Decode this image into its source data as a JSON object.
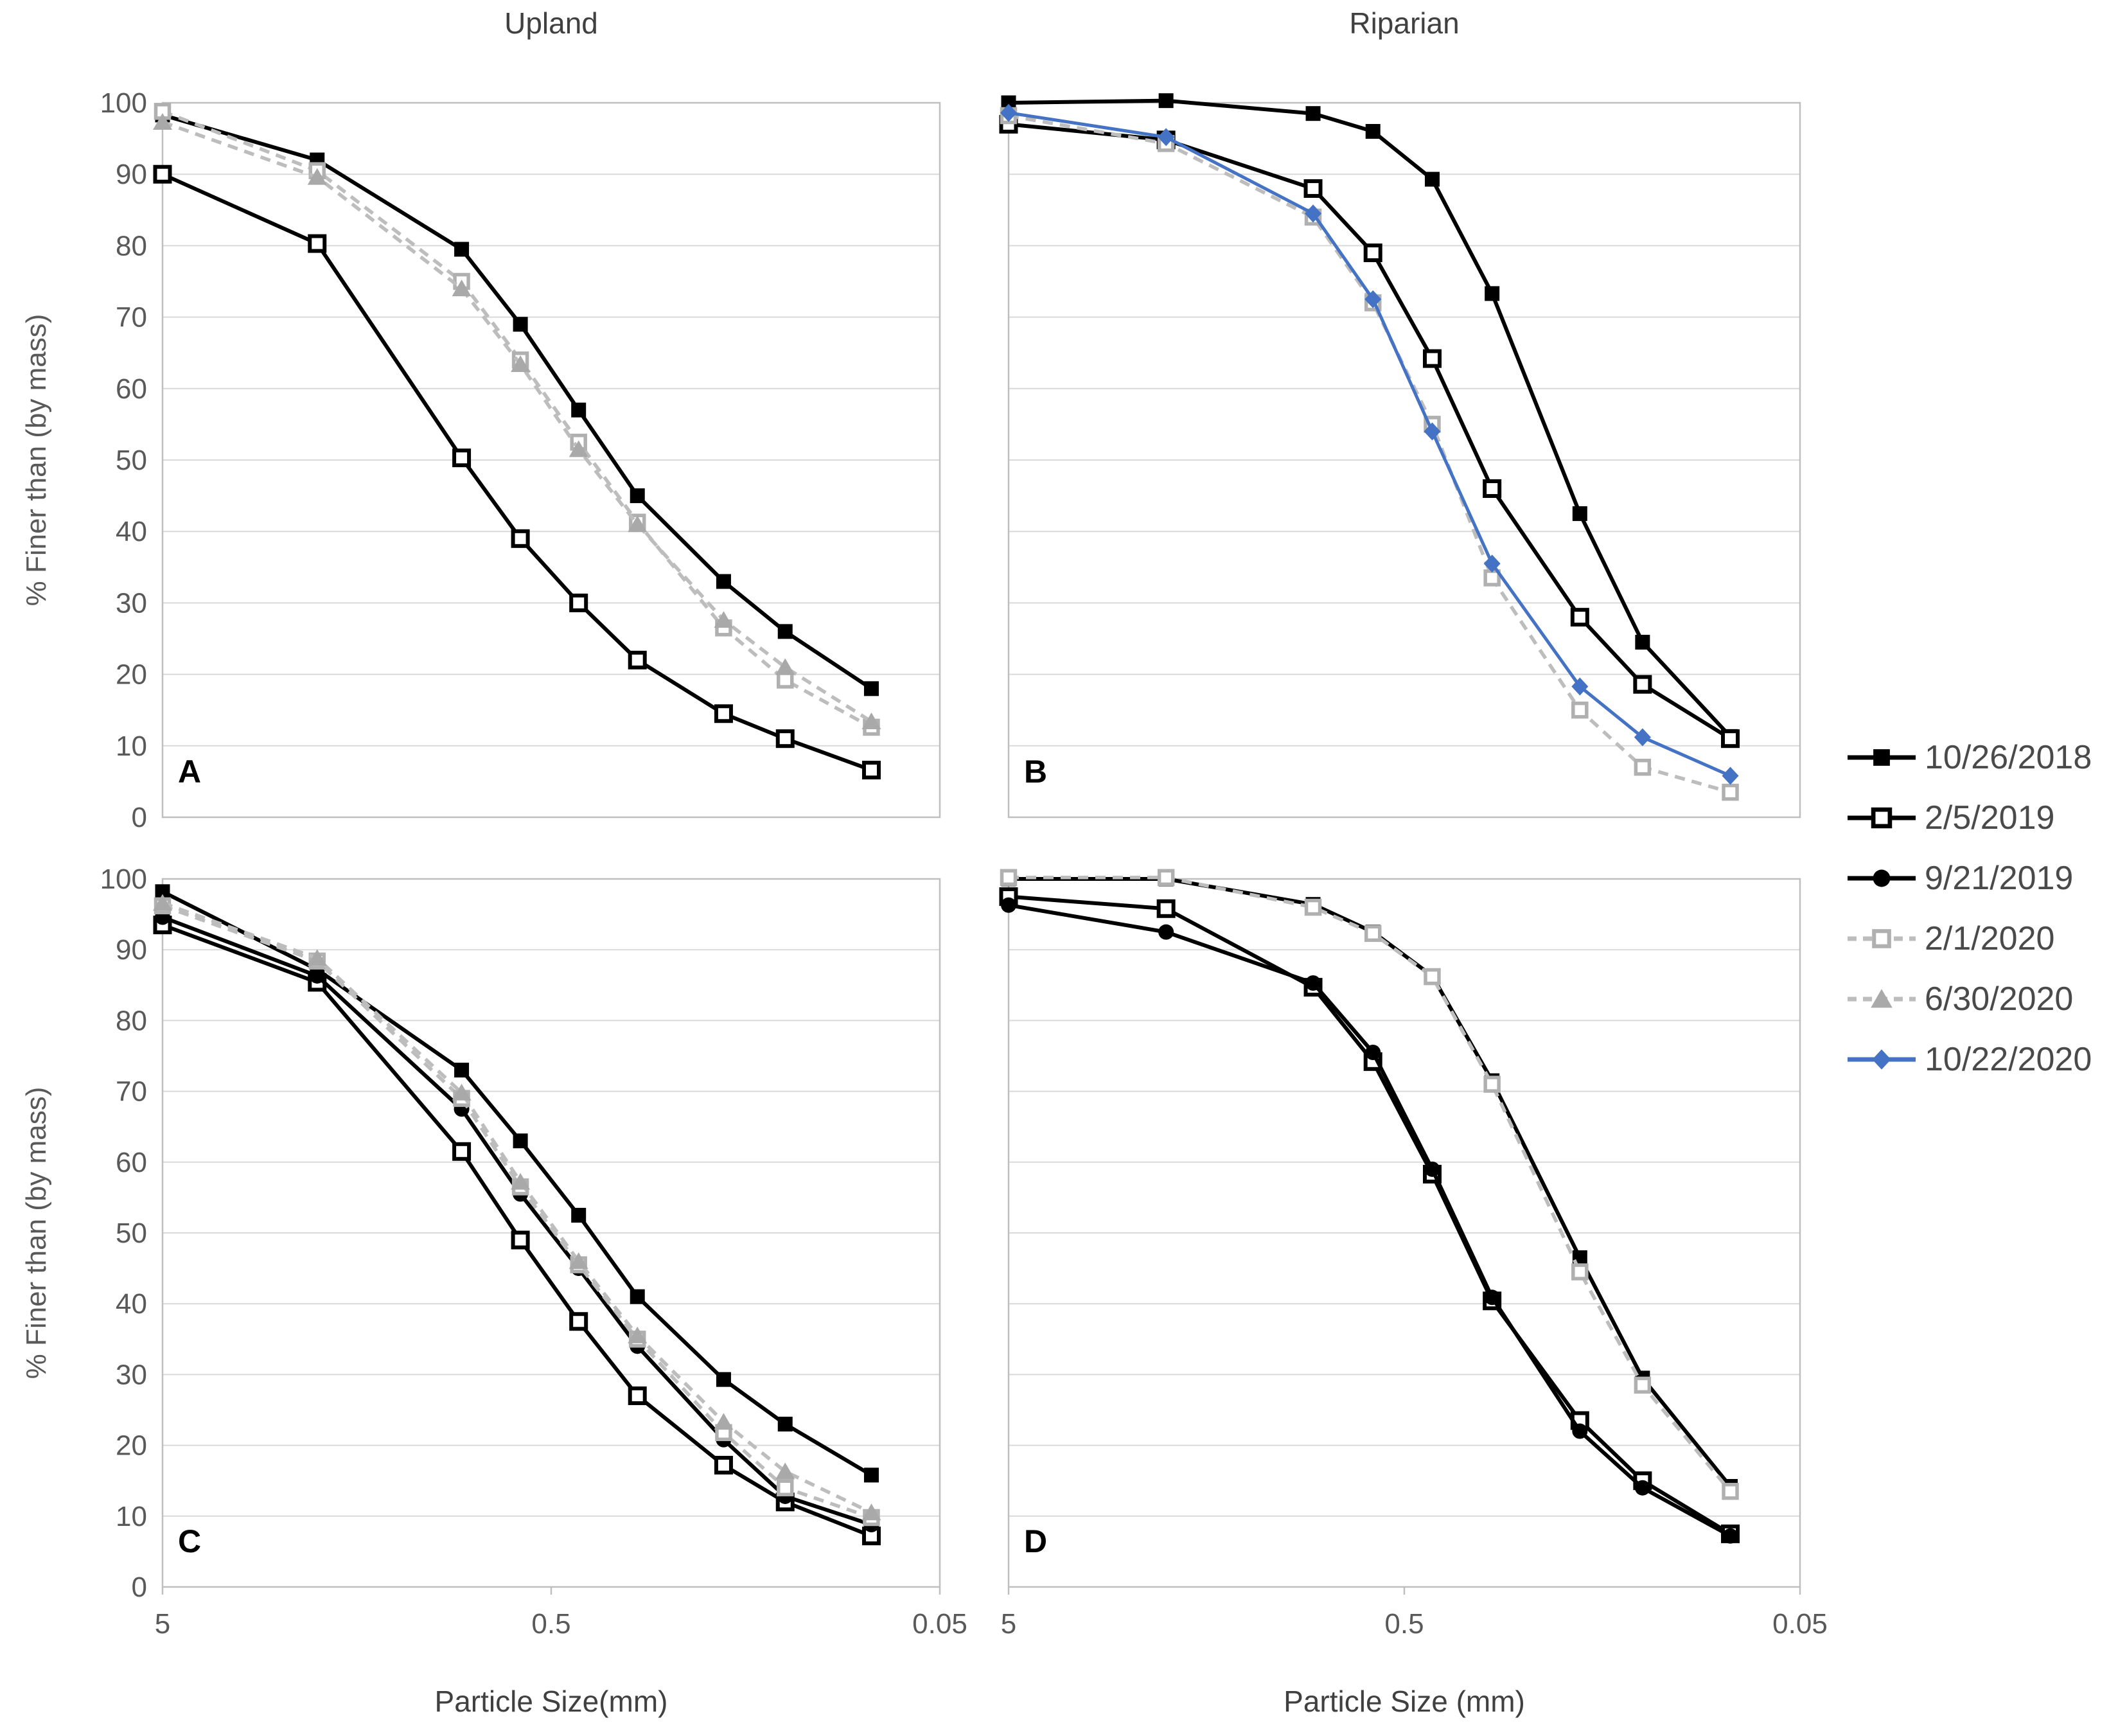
{
  "titles": {
    "left_column": "Upland",
    "right_column": "Riparian"
  },
  "y_axis": {
    "label": "% Finer than (by mass)",
    "max": 100,
    "min": 0,
    "ticks": [
      100,
      90,
      80,
      70,
      60,
      50,
      40,
      30,
      20,
      10,
      0
    ]
  },
  "x_axis": {
    "title_left": "Particle Size(mm)",
    "title_right": "Particle Size (mm)",
    "scale": "log",
    "max": 5,
    "min": 0.05,
    "ticks": [
      "5",
      "0.5",
      "0.05"
    ]
  },
  "legend": [
    {
      "label": "10/26/2018"
    },
    {
      "label": "2/5/2019"
    },
    {
      "label": "9/21/2019"
    },
    {
      "label": "2/1/2020"
    },
    {
      "label": "6/30/2020"
    },
    {
      "label": "10/22/2020"
    }
  ],
  "series_styles": {
    "10/26/2018": {
      "color": "#000000",
      "dash": null,
      "marker": "square-filled",
      "line_width": 6
    },
    "2/5/2019": {
      "color": "#000000",
      "dash": null,
      "marker": "square-open",
      "line_width": 6
    },
    "9/21/2019": {
      "color": "#000000",
      "dash": null,
      "marker": "circle-filled",
      "line_width": 6
    },
    "2/1/2020": {
      "color": "#bdbdbd",
      "dash": "16,11",
      "marker": "square-open-gray",
      "line_width": 5.5
    },
    "6/30/2020": {
      "color": "#bdbdbd",
      "dash": "16,11",
      "marker": "triangle-filled",
      "line_width": 5.5
    },
    "10/22/2020": {
      "color": "#4472c4",
      "dash": null,
      "marker": "diamond-filled",
      "line_width": 5
    }
  },
  "chart_data": [
    {
      "label": "A",
      "group": "Upland",
      "type": "line",
      "x": [
        5,
        2,
        0.85,
        0.6,
        0.425,
        0.3,
        0.18,
        0.125,
        0.075
      ],
      "series": [
        {
          "name": "10/26/2018",
          "values": [
            98.3,
            92,
            79.5,
            69,
            57,
            45,
            33,
            26,
            18
          ]
        },
        {
          "name": "2/5/2019",
          "values": [
            90,
            80.3,
            50.3,
            39,
            30,
            22,
            14.5,
            11,
            6.6
          ]
        },
        {
          "name": "2/1/2020",
          "values": [
            98.8,
            90.5,
            75,
            64,
            52.5,
            41.3,
            26.5,
            19.2,
            12.6
          ]
        },
        {
          "name": "6/30/2020",
          "values": [
            97.3,
            89.6,
            74,
            63.4,
            51.5,
            41,
            27.6,
            21,
            13.4
          ]
        }
      ]
    },
    {
      "label": "B",
      "group": "Riparian",
      "type": "line",
      "x": [
        5,
        2,
        0.85,
        0.6,
        0.425,
        0.3,
        0.18,
        0.125,
        0.075
      ],
      "series": [
        {
          "name": "10/26/2018",
          "values": [
            100,
            100.3,
            98.5,
            96,
            89.3,
            73.3,
            42.5,
            24.5,
            11.3
          ]
        },
        {
          "name": "2/5/2019",
          "values": [
            97,
            94.8,
            88,
            79,
            64.2,
            46,
            28,
            18.6,
            11
          ]
        },
        {
          "name": "2/1/2020",
          "values": [
            98.2,
            94.3,
            84,
            72,
            55,
            33.5,
            15,
            7,
            3.5
          ]
        },
        {
          "name": "10/22/2020",
          "values": [
            98.6,
            95.2,
            84.5,
            72.5,
            54,
            35.5,
            18.3,
            11.2,
            5.8
          ]
        }
      ]
    },
    {
      "label": "C",
      "group": "Upland",
      "type": "line",
      "x": [
        5,
        2,
        0.85,
        0.6,
        0.425,
        0.3,
        0.18,
        0.125,
        0.075
      ],
      "series": [
        {
          "name": "10/26/2018",
          "values": [
            98.2,
            87.2,
            73,
            63,
            52.5,
            41,
            29.3,
            23,
            15.8
          ]
        },
        {
          "name": "2/5/2019",
          "values": [
            93.5,
            85.4,
            61.5,
            49,
            37.5,
            27,
            17.2,
            12,
            7.2
          ]
        },
        {
          "name": "9/21/2019",
          "values": [
            94.6,
            86.3,
            67.5,
            55.5,
            45,
            34,
            20.8,
            12.8,
            8.8
          ]
        },
        {
          "name": "2/1/2020",
          "values": [
            96.2,
            88.4,
            69,
            56.5,
            45.5,
            35,
            21.8,
            14,
            9.8
          ]
        },
        {
          "name": "6/30/2020",
          "values": [
            96.6,
            88.8,
            69.8,
            57.2,
            46,
            35.5,
            23.3,
            16.3,
            10.5
          ]
        }
      ]
    },
    {
      "label": "D",
      "group": "Riparian",
      "type": "line",
      "x": [
        5,
        2,
        0.85,
        0.6,
        0.425,
        0.3,
        0.18,
        0.125,
        0.075
      ],
      "series": [
        {
          "name": "10/26/2018",
          "values": [
            100,
            100,
            96.4,
            92.5,
            86.3,
            71.5,
            46.5,
            29.5,
            14.2
          ]
        },
        {
          "name": "2/5/2019",
          "values": [
            97.5,
            95.8,
            84.7,
            74.2,
            58.3,
            40.4,
            23.5,
            15,
            7.5
          ]
        },
        {
          "name": "9/21/2019",
          "values": [
            96.3,
            92.5,
            85.3,
            75.5,
            59,
            40.9,
            22,
            14,
            7.2
          ]
        },
        {
          "name": "2/1/2020",
          "values": [
            100.2,
            100.2,
            96,
            92.3,
            86.2,
            71,
            44.5,
            28.5,
            13.5
          ]
        }
      ]
    }
  ],
  "style": {
    "gridline_color": "#d9d9d9",
    "border_color": "#bfbfbf",
    "tick_label_color": "#595959",
    "legend_text_color": "#4a4a4a",
    "accent_blue": "#4472c4"
  }
}
